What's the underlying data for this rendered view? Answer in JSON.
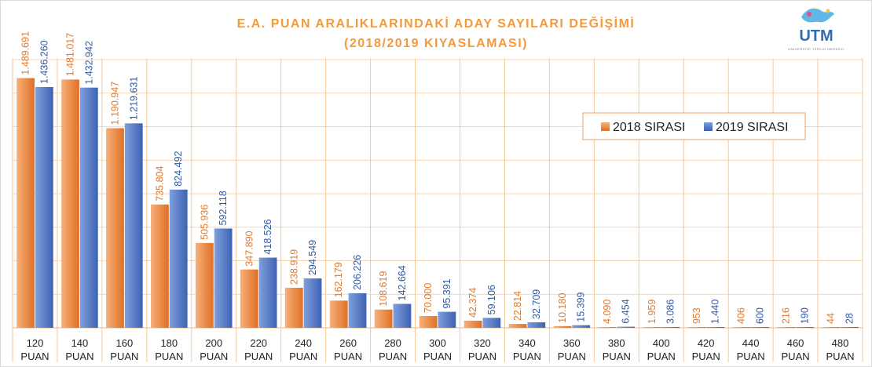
{
  "title_line1": "E.A. PUAN ARALIKLARINDAKİ ADAY SAYILARI DEĞİŞİMİ",
  "title_line2": "(2018/2019 KIYASLAMASI)",
  "logo_text": "UTM",
  "logo_subtext": "UNIVERSITE TERCIH MERKEZI",
  "colors": {
    "series_2018": "#f0924a",
    "series_2019": "#4a72c4",
    "grid": "#f5c99a",
    "title": "#f39a3c",
    "legend_border": "#f0a060"
  },
  "chart_data": {
    "type": "bar",
    "categories": [
      "120",
      "140",
      "160",
      "180",
      "200",
      "220",
      "240",
      "260",
      "280",
      "300",
      "320",
      "340",
      "360",
      "380",
      "400",
      "420",
      "440",
      "460",
      "480"
    ],
    "category_suffix": "PUAN",
    "series": [
      {
        "name": "2018 SIRASI",
        "values": [
          1489691,
          1481017,
          1190947,
          735804,
          505936,
          347890,
          238919,
          162179,
          108619,
          70000,
          42374,
          22814,
          10180,
          4090,
          1959,
          953,
          406,
          216,
          44
        ],
        "labels": [
          "1.489.691",
          "1.481.017",
          "1.190.947",
          "735.804",
          "505.936",
          "347.890",
          "238.919",
          "162.179",
          "108.619",
          "70.000",
          "42.374",
          "22.814",
          "10.180",
          "4.090",
          "1.959",
          "953",
          "406",
          "216",
          "44"
        ]
      },
      {
        "name": "2019 SIRASI",
        "values": [
          1436260,
          1432942,
          1219631,
          824492,
          592118,
          418526,
          294549,
          206226,
          142664,
          95391,
          59106,
          32709,
          15399,
          6454,
          3086,
          1440,
          600,
          190,
          28
        ],
        "labels": [
          "1.436.260",
          "1.432.942",
          "1.219.631",
          "824.492",
          "592.118",
          "418.526",
          "294.549",
          "206.226",
          "142.664",
          "95.391",
          "59.106",
          "32.709",
          "15.399",
          "6.454",
          "3.086",
          "1.440",
          "600",
          "190",
          "28"
        ]
      }
    ],
    "ylim": [
      0,
      1600000
    ],
    "grid": true,
    "legend_position": "right"
  }
}
